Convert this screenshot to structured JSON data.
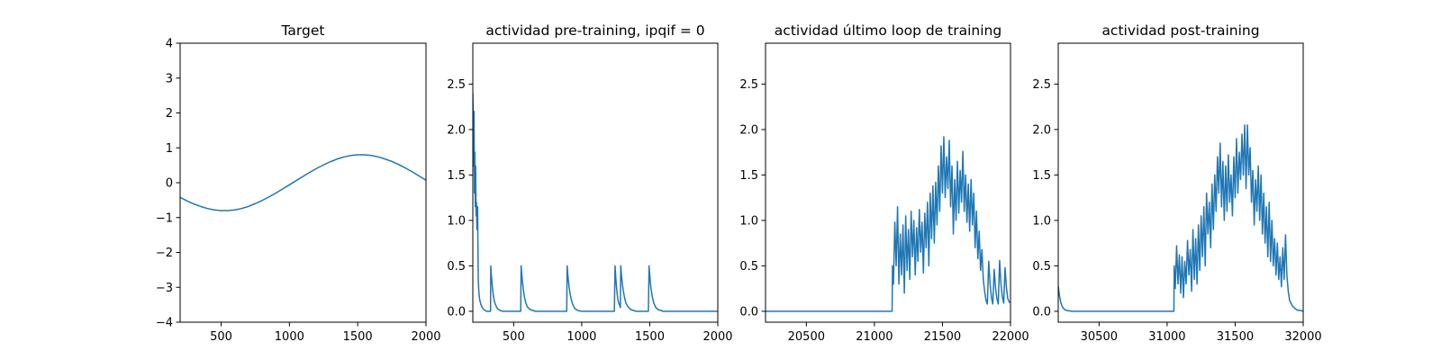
{
  "chart_data": [
    {
      "type": "line",
      "title": "Target",
      "xlim": [
        200,
        2000
      ],
      "ylim": [
        -4,
        4
      ],
      "xticks": [
        500,
        1000,
        1500,
        2000
      ],
      "yticks": [
        -4,
        -3,
        -2,
        -1,
        0,
        1,
        2,
        3,
        4
      ],
      "xtick_labels": [
        "500",
        "1000",
        "1500",
        "2000"
      ],
      "ytick_labels": [
        "−4",
        "−3",
        "−2",
        "−1",
        "0",
        "1",
        "2",
        "3",
        "4"
      ],
      "series": [
        {
          "color": "#1f77b4",
          "x": [
            200,
            250,
            300,
            350,
            400,
            450,
            500,
            550,
            600,
            650,
            700,
            750,
            800,
            850,
            900,
            950,
            1000,
            1050,
            1100,
            1150,
            1200,
            1250,
            1300,
            1350,
            1400,
            1450,
            1500,
            1550,
            1600,
            1650,
            1700,
            1750,
            1800,
            1850,
            1900,
            1950,
            2000
          ],
          "y": [
            -0.42,
            -0.52,
            -0.61,
            -0.68,
            -0.74,
            -0.78,
            -0.8,
            -0.8,
            -0.78,
            -0.74,
            -0.68,
            -0.6,
            -0.51,
            -0.41,
            -0.3,
            -0.18,
            -0.06,
            0.06,
            0.18,
            0.3,
            0.41,
            0.51,
            0.6,
            0.68,
            0.74,
            0.78,
            0.8,
            0.8,
            0.78,
            0.74,
            0.68,
            0.61,
            0.52,
            0.42,
            0.31,
            0.19,
            0.07
          ]
        }
      ]
    },
    {
      "type": "line",
      "title": "actividad pre-training, ipqif = 0",
      "xlim": [
        200,
        2000
      ],
      "ylim": [
        -0.12,
        2.95
      ],
      "xticks": [
        500,
        1000,
        1500,
        2000
      ],
      "yticks": [
        0.0,
        0.5,
        1.0,
        1.5,
        2.0,
        2.5
      ],
      "xtick_labels": [
        "500",
        "1000",
        "1500",
        "2000"
      ],
      "ytick_labels": [
        "0.0",
        "0.5",
        "1.0",
        "1.5",
        "2.0",
        "2.5"
      ],
      "series": [
        {
          "color": "#1f77b4",
          "x": [
            200,
            203,
            206,
            209,
            212,
            215,
            218,
            221,
            224,
            227,
            230,
            235,
            240,
            245,
            250,
            260,
            270,
            280,
            290,
            300,
            310,
            320,
            330,
            332,
            335,
            340,
            345,
            350,
            360,
            370,
            380,
            390,
            400,
            420,
            440,
            460,
            480,
            500,
            520,
            540,
            552,
            555,
            560,
            565,
            570,
            580,
            590,
            600,
            620,
            640,
            660,
            700,
            750,
            800,
            850,
            880,
            890,
            893,
            897,
            902,
            908,
            915,
            925,
            935,
            950,
            970,
            1000,
            1050,
            1100,
            1150,
            1200,
            1240,
            1245,
            1250,
            1255,
            1260,
            1265,
            1270,
            1280,
            1284,
            1287,
            1292,
            1298,
            1305,
            1315,
            1325,
            1340,
            1360,
            1380,
            1400,
            1450,
            1490,
            1495,
            1500,
            1505,
            1510,
            1520,
            1530,
            1545,
            1560,
            1580,
            1600,
            1700,
            1800,
            1900,
            2000
          ],
          "y": [
            2.4,
            2.1,
            1.6,
            2.2,
            1.3,
            1.75,
            1.15,
            1.6,
            1.05,
            1.2,
            0.9,
            1.15,
            0.35,
            0.2,
            0.13,
            0.07,
            0.04,
            0.02,
            0.01,
            0.0,
            0.0,
            0.0,
            0.0,
            0.5,
            0.42,
            0.33,
            0.25,
            0.18,
            0.1,
            0.06,
            0.03,
            0.02,
            0.01,
            0.0,
            0.0,
            0.0,
            0.0,
            0.0,
            0.0,
            0.0,
            0.0,
            0.5,
            0.4,
            0.32,
            0.25,
            0.15,
            0.09,
            0.05,
            0.02,
            0.01,
            0.0,
            0.0,
            0.0,
            0.0,
            0.0,
            0.0,
            0.0,
            0.5,
            0.42,
            0.34,
            0.26,
            0.19,
            0.12,
            0.07,
            0.03,
            0.01,
            0.0,
            0.0,
            0.0,
            0.0,
            0.0,
            0.0,
            0.5,
            0.38,
            0.28,
            0.2,
            0.14,
            0.1,
            0.06,
            0.04,
            0.5,
            0.4,
            0.31,
            0.23,
            0.15,
            0.09,
            0.05,
            0.02,
            0.01,
            0.0,
            0.0,
            0.0,
            0.5,
            0.4,
            0.31,
            0.24,
            0.15,
            0.09,
            0.04,
            0.02,
            0.01,
            0.0,
            0.0,
            0.0,
            0.0,
            0.0
          ]
        }
      ]
    },
    {
      "type": "line",
      "title": "actividad último loop de training",
      "xlim": [
        20200,
        22000
      ],
      "ylim": [
        -0.12,
        2.95
      ],
      "xticks": [
        20500,
        21000,
        21500,
        22000
      ],
      "yticks": [
        0.0,
        0.5,
        1.0,
        1.5,
        2.0,
        2.5
      ],
      "xtick_labels": [
        "20500",
        "21000",
        "21500",
        "22000"
      ],
      "ytick_labels": [
        "0.0",
        "0.5",
        "1.0",
        "1.5",
        "2.0",
        "2.5"
      ],
      "series": [
        {
          "color": "#1f77b4",
          "x": [
            20200,
            20400,
            20600,
            20800,
            21000,
            21100,
            21130,
            21133,
            21140,
            21150,
            21160,
            21170,
            21180,
            21190,
            21200,
            21210,
            21220,
            21230,
            21240,
            21250,
            21260,
            21270,
            21280,
            21290,
            21300,
            21310,
            21320,
            21330,
            21340,
            21350,
            21360,
            21370,
            21380,
            21390,
            21400,
            21410,
            21420,
            21430,
            21440,
            21450,
            21460,
            21470,
            21480,
            21490,
            21500,
            21510,
            21520,
            21530,
            21540,
            21550,
            21560,
            21570,
            21580,
            21590,
            21600,
            21610,
            21620,
            21630,
            21640,
            21650,
            21660,
            21670,
            21680,
            21690,
            21700,
            21710,
            21720,
            21730,
            21740,
            21750,
            21760,
            21770,
            21780,
            21790,
            21800,
            21810,
            21820,
            21830,
            21840,
            21850,
            21860,
            21870,
            21880,
            21890,
            21900,
            21910,
            21920,
            21930,
            21940,
            21950,
            21960,
            21970,
            21980,
            21990,
            22000
          ],
          "y": [
            0.0,
            0.0,
            0.0,
            0.0,
            0.0,
            0.0,
            0.0,
            0.5,
            0.3,
            0.98,
            0.5,
            1.15,
            0.3,
            0.85,
            0.4,
            0.95,
            0.2,
            1.05,
            0.45,
            0.9,
            0.35,
            1.1,
            0.6,
            1.0,
            0.4,
            0.92,
            0.55,
            1.12,
            0.65,
            0.98,
            0.42,
            1.08,
            0.7,
            1.2,
            0.5,
            1.3,
            0.8,
            1.38,
            0.75,
            1.42,
            0.95,
            1.6,
            1.1,
            1.82,
            1.3,
            1.92,
            1.25,
            1.7,
            1.35,
            1.88,
            1.15,
            1.6,
            0.85,
            1.45,
            1.0,
            1.65,
            1.08,
            1.55,
            1.2,
            1.76,
            1.1,
            1.5,
            0.98,
            1.4,
            0.88,
            1.45,
            0.95,
            1.3,
            0.7,
            1.1,
            0.58,
            0.88,
            0.45,
            0.68,
            0.35,
            0.22,
            0.12,
            0.08,
            0.55,
            0.3,
            0.15,
            0.08,
            0.46,
            0.26,
            0.14,
            0.08,
            0.56,
            0.3,
            0.16,
            0.09,
            0.48,
            0.26,
            0.14,
            0.1,
            0.1
          ]
        }
      ]
    },
    {
      "type": "line",
      "title": "actividad post-training",
      "xlim": [
        30200,
        32000
      ],
      "ylim": [
        -0.12,
        2.95
      ],
      "xticks": [
        30500,
        31000,
        31500,
        32000
      ],
      "yticks": [
        0.0,
        0.5,
        1.0,
        1.5,
        2.0,
        2.5
      ],
      "xtick_labels": [
        "30500",
        "31000",
        "31500",
        "32000"
      ],
      "ytick_labels": [
        "0.0",
        "0.5",
        "1.0",
        "1.5",
        "2.0",
        "2.5"
      ],
      "series": [
        {
          "color": "#1f77b4",
          "x": [
            30200,
            30205,
            30210,
            30220,
            30230,
            30245,
            30260,
            30300,
            30400,
            30600,
            30800,
            31000,
            31050,
            31052,
            31060,
            31070,
            31080,
            31090,
            31100,
            31110,
            31120,
            31130,
            31140,
            31150,
            31160,
            31170,
            31180,
            31190,
            31200,
            31210,
            31220,
            31230,
            31240,
            31250,
            31260,
            31270,
            31280,
            31290,
            31300,
            31310,
            31320,
            31330,
            31340,
            31350,
            31360,
            31370,
            31380,
            31390,
            31400,
            31410,
            31420,
            31430,
            31440,
            31450,
            31460,
            31470,
            31480,
            31490,
            31500,
            31510,
            31520,
            31530,
            31540,
            31550,
            31560,
            31570,
            31580,
            31590,
            31600,
            31610,
            31620,
            31630,
            31640,
            31650,
            31660,
            31670,
            31680,
            31690,
            31700,
            31710,
            31720,
            31730,
            31740,
            31750,
            31760,
            31770,
            31780,
            31790,
            31800,
            31810,
            31820,
            31830,
            31840,
            31850,
            31860,
            31870,
            31880,
            31890,
            31900,
            31920,
            31940,
            31960,
            31980,
            32000
          ],
          "y": [
            0.28,
            0.22,
            0.16,
            0.09,
            0.05,
            0.02,
            0.01,
            0.0,
            0.0,
            0.0,
            0.0,
            0.0,
            0.0,
            0.5,
            0.25,
            0.72,
            0.3,
            0.62,
            0.2,
            0.6,
            0.15,
            0.55,
            0.3,
            0.78,
            0.4,
            0.68,
            0.22,
            0.9,
            0.35,
            0.8,
            0.3,
            0.95,
            0.45,
            1.05,
            0.6,
            1.15,
            0.5,
            1.3,
            0.85,
            1.2,
            0.7,
            1.4,
            0.9,
            1.5,
            1.1,
            1.7,
            1.3,
            1.85,
            1.15,
            1.65,
            1.0,
            1.6,
            1.1,
            1.72,
            1.2,
            1.5,
            1.05,
            1.7,
            1.25,
            1.9,
            1.3,
            1.75,
            1.45,
            1.95,
            1.5,
            2.05,
            1.35,
            2.05,
            1.5,
            1.8,
            1.2,
            1.55,
            0.95,
            1.45,
            1.1,
            1.6,
            1.0,
            1.5,
            0.85,
            1.3,
            0.75,
            1.15,
            0.6,
            1.2,
            0.55,
            1.0,
            0.5,
            0.8,
            0.4,
            0.75,
            0.35,
            0.6,
            0.27,
            0.7,
            0.35,
            0.84,
            0.4,
            0.22,
            0.12,
            0.06,
            0.03,
            0.01,
            0.01,
            0.0
          ]
        }
      ]
    }
  ]
}
